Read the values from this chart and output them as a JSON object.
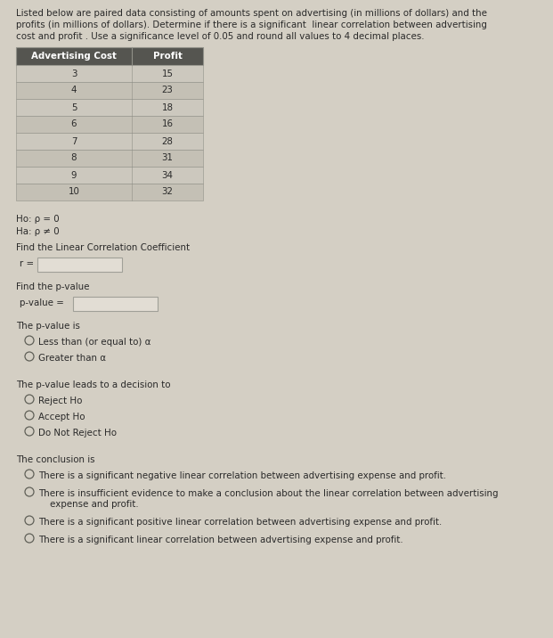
{
  "bg_color": "#d4cfc4",
  "title_text_lines": [
    "Listed below are paired data consisting of amounts spent on advertising (in millions of dollars) and the",
    "profits (in millions of dollars). Determine if there is a significant  linear correlation between advertising",
    "cost and profit . Use a significance level of 0.05 and round all values to 4 decimal places."
  ],
  "table_headers": [
    "Advertising Cost",
    "Profit"
  ],
  "table_rows": [
    [
      3,
      15
    ],
    [
      4,
      23
    ],
    [
      5,
      18
    ],
    [
      6,
      16
    ],
    [
      7,
      28
    ],
    [
      8,
      31
    ],
    [
      9,
      34
    ],
    [
      10,
      32
    ]
  ],
  "ho_text": "Ho: ρ = 0",
  "ha_text": "Ha: ρ ≠ 0",
  "find_r_label": "Find the Linear Correlation Coefficient",
  "r_label": "r =",
  "find_pvalue_label": "Find the p-value",
  "pvalue_label": "p-value =",
  "pvalue_is_label": "The p-value is",
  "pvalue_options": [
    "Less than (or equal to) α",
    "Greater than α"
  ],
  "decision_label": "The p-value leads to a decision to",
  "decision_options": [
    "Reject Ho",
    "Accept Ho",
    "Do Not Reject Ho"
  ],
  "conclusion_label": "The conclusion is",
  "conclusion_options": [
    "There is a significant negative linear correlation between advertising expense and profit.",
    "There is insufficient evidence to make a conclusion about the linear correlation between advertising\n    expense and profit.",
    "There is a significant positive linear correlation between advertising expense and profit.",
    "There is a significant linear correlation between advertising expense and profit."
  ],
  "text_color": "#2a2a2a",
  "table_header_bg": "#555550",
  "table_header_fg": "#ffffff",
  "table_row_bg1": "#ccc8be",
  "table_row_bg2": "#c4c0b5",
  "table_border": "#909088",
  "input_box_bg": "#e2ddd4",
  "input_box_border": "#a0a098",
  "radio_color": "#606058"
}
